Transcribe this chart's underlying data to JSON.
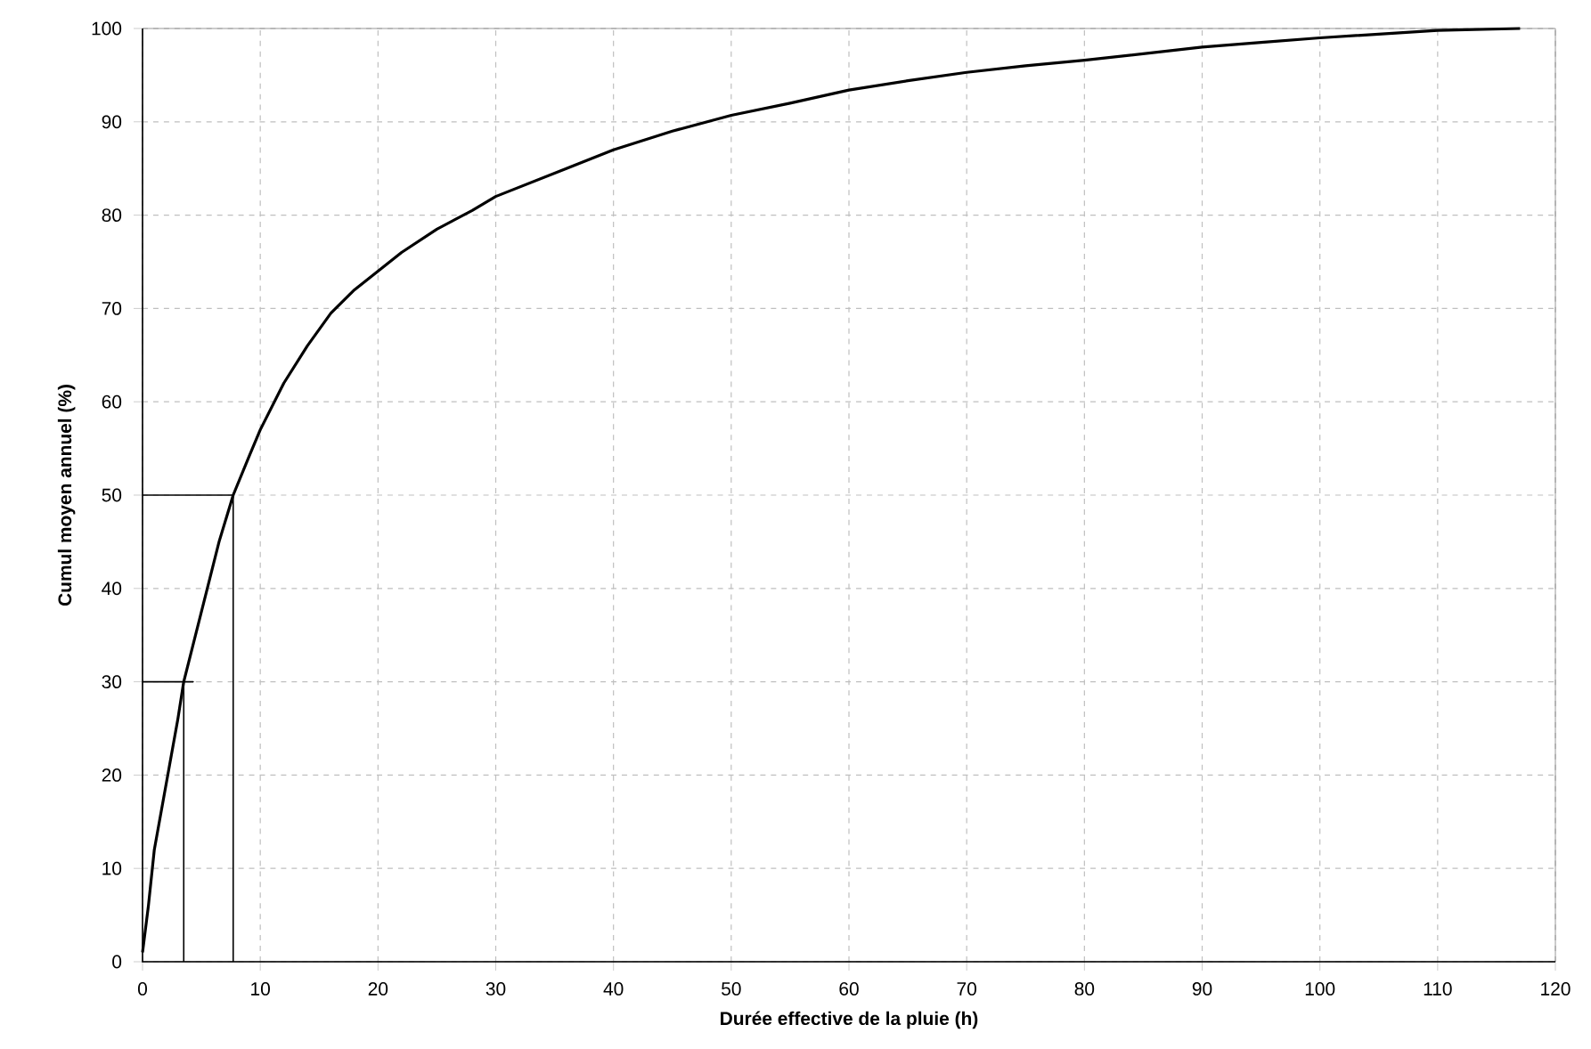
{
  "chart_data": {
    "type": "line",
    "xlabel": "Durée effective de la pluie (h)",
    "ylabel": "Cumul moyen annuel (%)",
    "xlim": [
      0,
      120
    ],
    "ylim": [
      0,
      100
    ],
    "xticks": [
      0,
      10,
      20,
      30,
      40,
      50,
      60,
      70,
      80,
      90,
      100,
      110,
      120
    ],
    "yticks": [
      0,
      10,
      20,
      30,
      40,
      50,
      60,
      70,
      80,
      90,
      100
    ],
    "grid": true,
    "series": [
      {
        "color": "#000000",
        "x": [
          0,
          0.5,
          1,
          2,
          3,
          3.5,
          4.5,
          5.5,
          6.5,
          7.7,
          9,
          10,
          12,
          14,
          16,
          18,
          20,
          22,
          25,
          28,
          30,
          33,
          36,
          40,
          45,
          50,
          55,
          60,
          65,
          70,
          75,
          80,
          85,
          90,
          95,
          100,
          105,
          110,
          117
        ],
        "values": [
          1,
          6,
          12,
          19,
          26,
          30,
          35,
          40,
          45,
          50,
          54,
          57,
          62,
          66,
          69.5,
          72,
          74,
          76,
          78.5,
          80.5,
          82,
          83.5,
          85,
          87,
          89,
          90.7,
          92,
          93.4,
          94.4,
          95.3,
          96,
          96.6,
          97.3,
          98,
          98.5,
          99,
          99.4,
          99.8,
          100
        ]
      },
      {
        "color": "#000000",
        "x": [
          0,
          4.3,
          3.5,
          3.5
        ],
        "values": [
          30,
          30,
          30,
          0
        ]
      },
      {
        "color": "#000000",
        "x": [
          0,
          7.7,
          7.7
        ],
        "values": [
          50,
          50,
          0
        ]
      }
    ]
  }
}
